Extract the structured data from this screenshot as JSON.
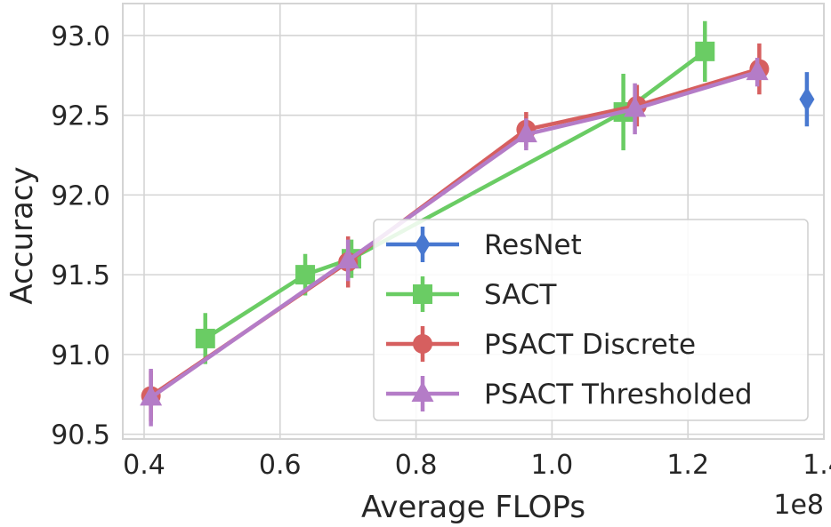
{
  "chart_data": {
    "type": "line",
    "title": "",
    "xlabel": "Average FLOPs",
    "ylabel": "Accuracy",
    "x_offset_label": "1e8",
    "x_scale": 100000000,
    "xlim": [
      0.3686,
      1.4
    ],
    "ylim": [
      90.47,
      93.2
    ],
    "xticks": [
      0.4,
      0.6,
      0.8,
      1.0,
      1.2,
      1.4
    ],
    "xtick_labels": [
      "0.4",
      "0.6",
      "0.8",
      "1.0",
      "1.2",
      "1.4"
    ],
    "yticks": [
      90.5,
      91.0,
      91.5,
      92.0,
      92.5,
      93.0
    ],
    "ytick_labels": [
      "90.5",
      "91.0",
      "91.5",
      "92.0",
      "92.5",
      "93.0"
    ],
    "grid": true,
    "legend_position": "bottom-right",
    "series": [
      {
        "name": "ResNet",
        "color": "#4878d0",
        "marker": "diamond",
        "x": [
          1.375
        ],
        "y": [
          92.6
        ],
        "err": [
          0.17
        ]
      },
      {
        "name": "SACT",
        "color": "#6acc64",
        "marker": "square",
        "x": [
          0.49,
          0.637,
          0.705,
          1.105,
          1.225
        ],
        "y": [
          91.1,
          91.5,
          91.6,
          92.52,
          92.9
        ],
        "err": [
          0.16,
          0.13,
          0.12,
          0.24,
          0.19
        ]
      },
      {
        "name": "PSACT Discrete",
        "color": "#d65f5f",
        "marker": "circle",
        "x": [
          0.41,
          0.7,
          0.962,
          1.125,
          1.305
        ],
        "y": [
          90.74,
          91.58,
          92.41,
          92.56,
          92.79
        ],
        "err": [
          0.16,
          0.16,
          0.11,
          0.13,
          0.16
        ]
      },
      {
        "name": "PSACT Thresholded",
        "color": "#b47cc7",
        "marker": "triangle",
        "x": [
          0.41,
          0.7,
          0.962,
          1.122,
          1.302
        ],
        "y": [
          90.73,
          91.59,
          92.38,
          92.54,
          92.77
        ],
        "err": [
          0.18,
          0.13,
          0.1,
          0.16,
          0.09
        ]
      }
    ]
  }
}
